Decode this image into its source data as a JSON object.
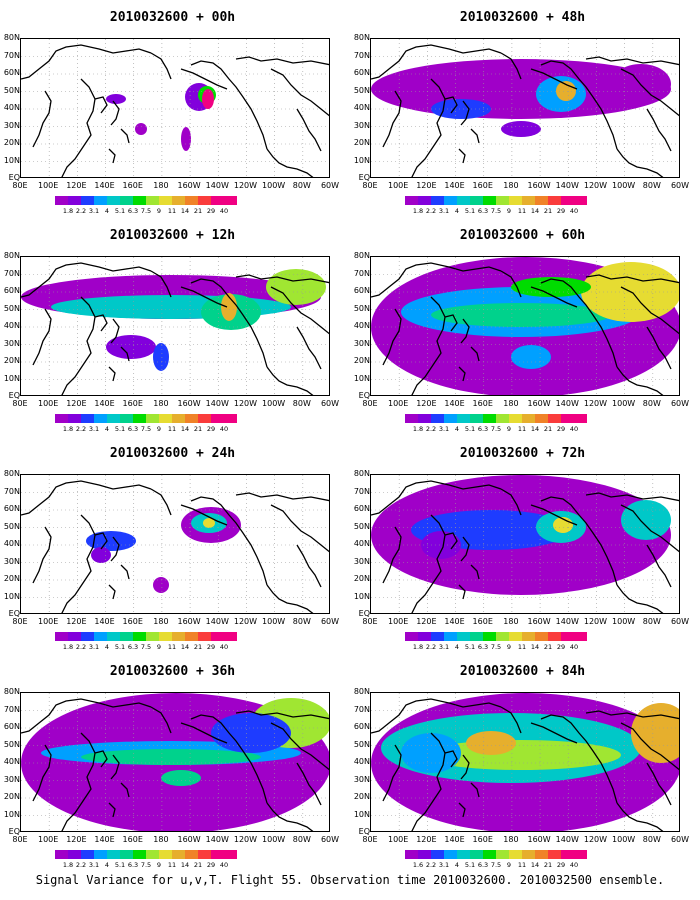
{
  "panels": [
    {
      "title": "2010032600 + 00h",
      "level": 0
    },
    {
      "title": "2010032600 + 48h",
      "level": 4
    },
    {
      "title": "2010032600 + 12h",
      "level": 1
    },
    {
      "title": "2010032600 + 60h",
      "level": 5
    },
    {
      "title": "2010032600 + 24h",
      "level": 2
    },
    {
      "title": "2010032600 + 72h",
      "level": 6
    },
    {
      "title": "2010032600 + 36h",
      "level": 3
    },
    {
      "title": "2010032600 + 84h",
      "level": 7
    }
  ],
  "y_axis_labels": [
    "80N",
    "70N",
    "60N",
    "50N",
    "40N",
    "30N",
    "20N",
    "10N",
    "EQ"
  ],
  "x_axis_labels": [
    "80E",
    "100E",
    "120E",
    "140E",
    "160E",
    "180",
    "160W",
    "140W",
    "120W",
    "100W",
    "80W",
    "60W"
  ],
  "colorbar": {
    "labels": [
      "1.8",
      "2.2",
      "3.1",
      "4",
      "5.1",
      "6.3",
      "7.5",
      "9",
      "11",
      "14",
      "21",
      "29",
      "40"
    ],
    "last_panel_first_label": "1.6",
    "colors": [
      "#a000c8",
      "#8200dc",
      "#1e3cff",
      "#00a0ff",
      "#00c8c8",
      "#00d28c",
      "#00dc00",
      "#a0e632",
      "#e6dc32",
      "#e6af2d",
      "#f08228",
      "#fa3c3c",
      "#f00082"
    ]
  },
  "caption": "Signal Variance for u,v,T. Flight 55. Observation time 2010032600. 2010032500 ensemble."
}
